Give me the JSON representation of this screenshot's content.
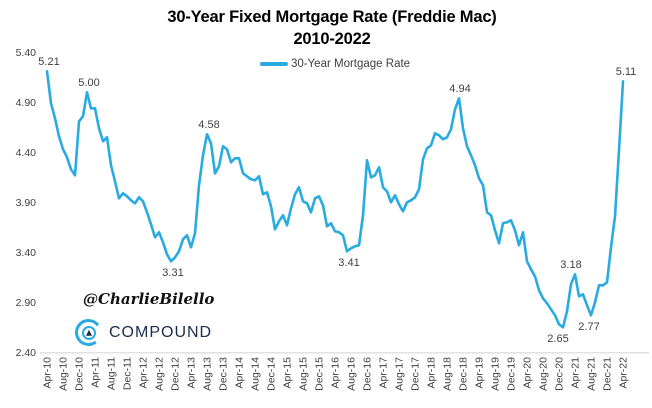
{
  "title": {
    "line1": "30-Year Fixed Mortgage Rate (Freddie Mac)",
    "line2": "2010-2022"
  },
  "legend": {
    "label": "30-Year Mortgage Rate"
  },
  "watermark": {
    "handle": "@CharlieBilello",
    "brand": "COMPOUND"
  },
  "colors": {
    "line": "#29ABE2",
    "axis_text": "#404040",
    "point_label_text": "#3f3f3f",
    "axis_line": "#D9D9D9",
    "brand_navy": "#1C2B4A",
    "brand_cyan": "#29ABE2",
    "title_text": "#000000"
  },
  "chart_data": {
    "type": "line",
    "title": "30-Year Fixed Mortgage Rate (Freddie Mac)",
    "subtitle": "2010-2022",
    "legend_position": "top-center",
    "grid": false,
    "ylim": [
      2.4,
      5.4
    ],
    "y_ticks": [
      "5.40",
      "4.90",
      "4.40",
      "3.90",
      "3.40",
      "2.90",
      "2.40"
    ],
    "x_unit": "month",
    "x_start": "Apr-2010",
    "x_end": "Apr-2022",
    "x_tick_every": 4,
    "x_tick_labels": [
      "Apr-10",
      "Aug-10",
      "Dec-10",
      "Apr-11",
      "Aug-11",
      "Dec-11",
      "Apr-12",
      "Aug-12",
      "Dec-12",
      "Apr-13",
      "Aug-13",
      "Dec-13",
      "Apr-14",
      "Aug-14",
      "Dec-14",
      "Apr-15",
      "Aug-15",
      "Dec-15",
      "Apr-16",
      "Aug-16",
      "Dec-16",
      "Apr-17",
      "Aug-17",
      "Dec-17",
      "Apr-18",
      "Aug-18",
      "Dec-18",
      "Apr-19",
      "Aug-19",
      "Dec-19",
      "Apr-20",
      "Aug-20",
      "Dec-20",
      "Apr-21",
      "Aug-21",
      "Dec-21",
      "Apr-22"
    ],
    "series": [
      {
        "name": "30-Year Mortgage Rate",
        "color": "#29ABE2",
        "values": [
          5.21,
          4.89,
          4.74,
          4.56,
          4.43,
          4.35,
          4.23,
          4.17,
          4.71,
          4.76,
          5.0,
          4.84,
          4.84,
          4.64,
          4.51,
          4.55,
          4.27,
          4.11,
          3.94,
          3.99,
          3.96,
          3.92,
          3.89,
          3.95,
          3.91,
          3.8,
          3.68,
          3.55,
          3.6,
          3.5,
          3.38,
          3.31,
          3.35,
          3.41,
          3.53,
          3.57,
          3.45,
          3.59,
          4.07,
          4.37,
          4.58,
          4.49,
          4.19,
          4.26,
          4.46,
          4.43,
          4.3,
          4.34,
          4.34,
          4.19,
          4.16,
          4.13,
          4.12,
          4.16,
          3.98,
          4.0,
          3.86,
          3.63,
          3.71,
          3.77,
          3.67,
          3.84,
          3.98,
          4.05,
          3.91,
          3.89,
          3.8,
          3.94,
          3.96,
          3.87,
          3.66,
          3.69,
          3.61,
          3.6,
          3.57,
          3.41,
          3.44,
          3.46,
          3.47,
          3.77,
          4.32,
          4.15,
          4.17,
          4.25,
          4.05,
          4.01,
          3.9,
          3.97,
          3.88,
          3.81,
          3.9,
          3.92,
          3.95,
          4.03,
          4.33,
          4.44,
          4.47,
          4.59,
          4.57,
          4.53,
          4.55,
          4.63,
          4.83,
          4.94,
          4.64,
          4.46,
          4.37,
          4.27,
          4.14,
          4.07,
          3.8,
          3.77,
          3.62,
          3.49,
          3.69,
          3.7,
          3.72,
          3.62,
          3.47,
          3.6,
          3.31,
          3.23,
          3.16,
          3.02,
          2.94,
          2.89,
          2.83,
          2.77,
          2.68,
          2.65,
          2.81,
          3.08,
          3.18,
          2.96,
          2.98,
          2.87,
          2.77,
          2.9,
          3.07,
          3.07,
          3.1,
          3.45,
          3.76,
          4.42,
          5.11
        ]
      }
    ],
    "point_labels": [
      {
        "index": 0,
        "text": "5.21",
        "pos": "above",
        "dx": 2
      },
      {
        "index": 10,
        "text": "5.00",
        "pos": "above",
        "dx": 2
      },
      {
        "index": 31,
        "text": "3.31",
        "pos": "below",
        "dx": 2
      },
      {
        "index": 40,
        "text": "4.58",
        "pos": "above",
        "dx": 2
      },
      {
        "index": 75,
        "text": "3.41",
        "pos": "below",
        "dx": 2
      },
      {
        "index": 103,
        "text": "4.94",
        "pos": "above",
        "dx": 1
      },
      {
        "index": 129,
        "text": "2.65",
        "pos": "below",
        "dx": -5
      },
      {
        "index": 132,
        "text": "3.18",
        "pos": "above",
        "dx": -4
      },
      {
        "index": 136,
        "text": "2.77",
        "pos": "below",
        "dx": -2
      },
      {
        "index": 144,
        "text": "5.11",
        "pos": "above",
        "dx": 3
      }
    ]
  }
}
